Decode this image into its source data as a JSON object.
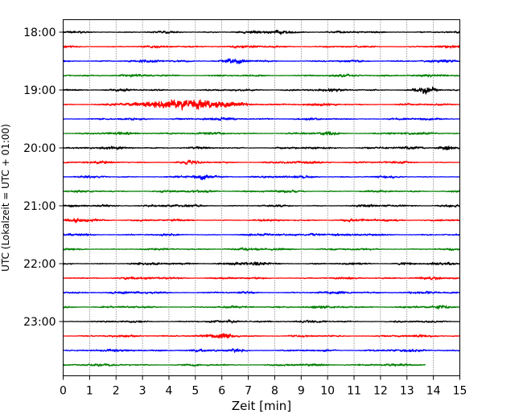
{
  "chart_data": {
    "type": "line",
    "title": "",
    "xlabel": "Zeit  [min]",
    "ylabel": "UTC (Lokalzeit = UTC + 01:00)",
    "xlim": [
      0,
      15
    ],
    "x_ticks": [
      "0",
      "1",
      "2",
      "3",
      "4",
      "5",
      "6",
      "7",
      "8",
      "9",
      "10",
      "11",
      "12",
      "13",
      "14",
      "15"
    ],
    "y_ticks": [
      "18:00",
      "19:00",
      "20:00",
      "21:00",
      "22:00",
      "23:00"
    ],
    "grid": "vertical dotted at each minute",
    "trace_interval_min": 15,
    "trace_colors": [
      "#000000",
      "#ff0000",
      "#0000ff",
      "#007f00"
    ],
    "traces": [
      {
        "start": "18:00",
        "color": "#000000",
        "events": [
          {
            "t": 8.2,
            "amp": 1.6
          }
        ]
      },
      {
        "start": "18:15",
        "color": "#ff0000",
        "events": []
      },
      {
        "start": "18:30",
        "color": "#0000ff",
        "events": [
          {
            "t": 6.5,
            "amp": 2.0
          }
        ]
      },
      {
        "start": "18:45",
        "color": "#007f00",
        "events": []
      },
      {
        "start": "19:00",
        "color": "#000000",
        "events": [
          {
            "t": 13.8,
            "amp": 3.5
          }
        ]
      },
      {
        "start": "19:15",
        "color": "#ff0000",
        "events": [
          {
            "t": 4.5,
            "amp": 6.0,
            "width": 1.6
          }
        ]
      },
      {
        "start": "19:30",
        "color": "#0000ff",
        "events": []
      },
      {
        "start": "19:45",
        "color": "#007f00",
        "events": [
          {
            "t": 10.0,
            "amp": 1.8
          }
        ]
      },
      {
        "start": "20:00",
        "color": "#000000",
        "events": [
          {
            "t": 14.5,
            "amp": 2.5
          }
        ]
      },
      {
        "start": "20:15",
        "color": "#ff0000",
        "events": [
          {
            "t": 4.9,
            "amp": 1.5
          }
        ]
      },
      {
        "start": "20:30",
        "color": "#0000ff",
        "events": [
          {
            "t": 5.3,
            "amp": 2.5
          }
        ]
      },
      {
        "start": "20:45",
        "color": "#007f00",
        "events": []
      },
      {
        "start": "21:00",
        "color": "#000000",
        "events": []
      },
      {
        "start": "21:15",
        "color": "#ff0000",
        "events": [
          {
            "t": 0.6,
            "amp": 1.6
          }
        ]
      },
      {
        "start": "21:30",
        "color": "#0000ff",
        "events": [
          {
            "t": 9.5,
            "amp": 1.5
          }
        ]
      },
      {
        "start": "21:45",
        "color": "#007f00",
        "events": []
      },
      {
        "start": "22:00",
        "color": "#000000",
        "events": [
          {
            "t": 7.2,
            "amp": 1.4
          },
          {
            "t": 13.0,
            "amp": 1.4
          }
        ]
      },
      {
        "start": "22:15",
        "color": "#ff0000",
        "events": []
      },
      {
        "start": "22:30",
        "color": "#0000ff",
        "events": []
      },
      {
        "start": "22:45",
        "color": "#007f00",
        "events": [
          {
            "t": 14.3,
            "amp": 1.6
          }
        ]
      },
      {
        "start": "23:00",
        "color": "#000000",
        "events": []
      },
      {
        "start": "23:15",
        "color": "#ff0000",
        "events": [
          {
            "t": 6.1,
            "amp": 2.2
          }
        ]
      },
      {
        "start": "23:30",
        "color": "#0000ff",
        "events": [
          {
            "t": 6.6,
            "amp": 1.5
          }
        ]
      },
      {
        "start": "23:45",
        "color": "#007f00",
        "events": [],
        "end": 13.7
      }
    ]
  }
}
